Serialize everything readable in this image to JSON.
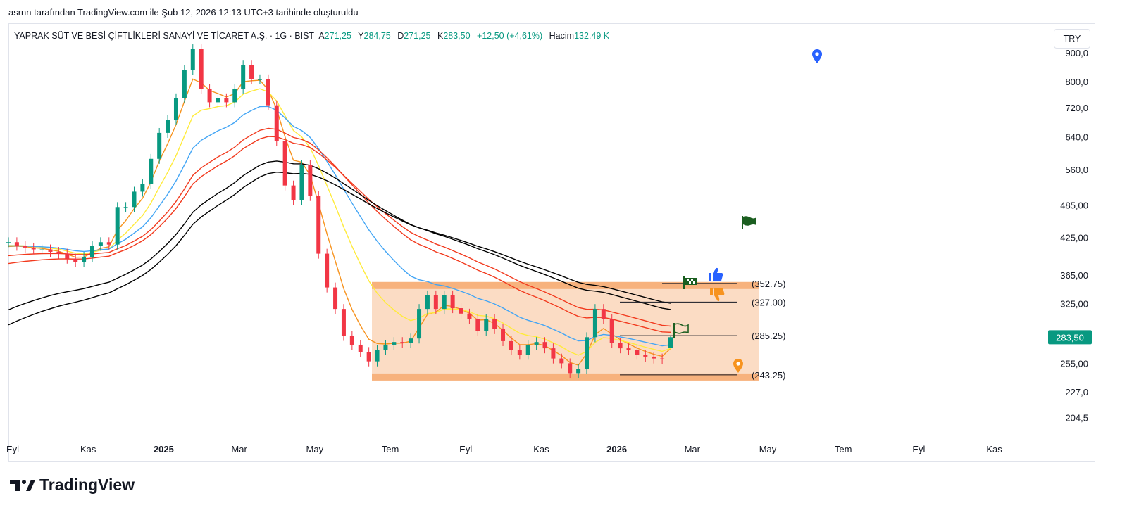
{
  "attribution": "asrnn tarafından TradingView.com ile Şub 12, 2026 12:13 UTC+3 tarihinde oluşturuldu",
  "legend": {
    "title": "YAPRAK SÜT VE BESİ ÇİFTLİKLERİ SANAYİ VE TİCARET A.Ş. · 1G · BIST",
    "open_label": "A",
    "open": "271,25",
    "high_label": "Y",
    "high": "284,75",
    "low_label": "D",
    "low": "271,25",
    "close_label": "K",
    "close": "283,50",
    "change": "+12,50 (+4,61%)",
    "volume_label": "Hacim",
    "volume": "132,49 K"
  },
  "currency": "TRY",
  "footer_logo": "TradingView",
  "colors": {
    "up": "#089981",
    "down": "#f23645",
    "zone": "#fbdcc4",
    "zone_edge": "#f7b27d",
    "last_price": "#089981"
  },
  "chart_data": {
    "type": "candlestick",
    "scale": "log",
    "ylim": [
      195,
      930
    ],
    "sampling": "approx. weekly closes, Sep 2024 – Feb 12 2026",
    "closes": [
      417,
      411,
      408,
      405,
      405,
      401,
      398,
      390,
      385,
      393,
      411,
      417,
      413,
      481,
      481,
      512,
      529,
      585,
      650,
      686,
      748,
      839,
      913,
      778,
      736,
      748,
      736,
      778,
      857,
      808,
      808,
      727,
      628,
      525,
      495,
      570,
      503,
      398,
      347,
      318,
      285,
      275,
      267,
      257,
      269,
      275,
      278,
      277,
      282,
      318,
      336,
      318,
      336,
      319,
      312,
      305,
      291,
      305,
      293,
      279,
      269,
      264,
      275,
      278,
      271,
      260,
      255,
      245,
      249,
      283.5,
      318,
      305,
      277,
      271,
      269,
      264,
      262,
      260,
      259,
      283.5
    ],
    "last_candle": {
      "open": 271.25,
      "high": 284.75,
      "low": 271.25,
      "close": 283.5
    },
    "moving_averages": [
      {
        "name": "MA fast",
        "color": "#f7931e",
        "period": 4,
        "seed": 405
      },
      {
        "name": "MA 2",
        "color": "#ffeb3b",
        "period": 9,
        "seed": 410
      },
      {
        "name": "MA 3",
        "color": "#42a5f5",
        "period": 16,
        "seed": 410
      },
      {
        "name": "MA 4",
        "color": "#f23a1e",
        "period": 26,
        "seed": 393
      },
      {
        "name": "MA 5",
        "color": "#f23a1e",
        "period": 30,
        "seed": 380
      },
      {
        "name": "MA 6",
        "color": "#000000",
        "period": 42,
        "seed": 312
      },
      {
        "name": "MA 7",
        "color": "#000000",
        "period": 48,
        "seed": 293
      }
    ],
    "y_ticks": [
      {
        "label": "900,0",
        "value": 900
      },
      {
        "label": "800,0",
        "value": 800
      },
      {
        "label": "720,0",
        "value": 720
      },
      {
        "label": "640,0",
        "value": 640
      },
      {
        "label": "560,0",
        "value": 560
      },
      {
        "label": "485,00",
        "value": 485
      },
      {
        "label": "425,00",
        "value": 425
      },
      {
        "label": "365,00",
        "value": 365
      },
      {
        "label": "325,00",
        "value": 325
      },
      {
        "label": "255,00",
        "value": 255
      },
      {
        "label": "227,0",
        "value": 227
      },
      {
        "label": "204,5",
        "value": 204.5
      }
    ],
    "last_price_label": "283,50",
    "x_ticks": [
      {
        "label": "Eyl",
        "month_index": 0,
        "bold": false
      },
      {
        "label": "Kas",
        "month_index": 2,
        "bold": false
      },
      {
        "label": "2025",
        "month_index": 4,
        "bold": true
      },
      {
        "label": "Mar",
        "month_index": 6,
        "bold": false
      },
      {
        "label": "May",
        "month_index": 8,
        "bold": false
      },
      {
        "label": "Tem",
        "month_index": 10,
        "bold": false
      },
      {
        "label": "Eyl",
        "month_index": 12,
        "bold": false
      },
      {
        "label": "Kas",
        "month_index": 14,
        "bold": false
      },
      {
        "label": "2026",
        "month_index": 16,
        "bold": true
      },
      {
        "label": "Mar",
        "month_index": 18,
        "bold": false
      },
      {
        "label": "May",
        "month_index": 20,
        "bold": false
      },
      {
        "label": "Tem",
        "month_index": 22,
        "bold": false
      },
      {
        "label": "Eyl",
        "month_index": 24,
        "bold": false
      },
      {
        "label": "Kas",
        "month_index": 26,
        "bold": false
      }
    ],
    "levels": [
      {
        "value": 352.75,
        "label": "(352.75)"
      },
      {
        "value": 327.0,
        "label": "(327.00)"
      },
      {
        "value": 285.25,
        "label": "(285.25)"
      },
      {
        "value": 243.25,
        "label": "(243.25)"
      }
    ],
    "zone": {
      "top": 352.75,
      "bottom": 243.25
    }
  }
}
